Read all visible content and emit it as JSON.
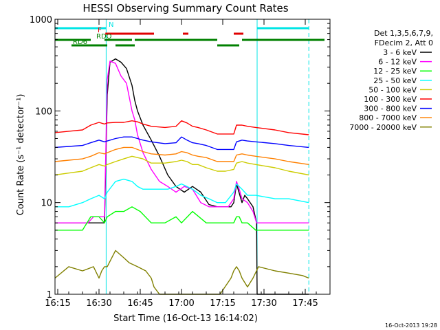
{
  "chart_data": {
    "type": "line",
    "title": "HESSI Observing Summary Count Rates",
    "xlabel": "Start Time (16-Oct-13 16:14:02)",
    "ylabel": "Count Rate (s⁻¹ detector⁻¹)",
    "y_scale": "log",
    "ylim": [
      1,
      1000
    ],
    "xlim_minutes": [
      0,
      100
    ],
    "x_ticks": [
      "16:15",
      "16:30",
      "16:45",
      "17:00",
      "17:15",
      "17:30",
      "17:45"
    ],
    "x_tick_minutes": [
      1,
      16,
      31,
      46,
      61,
      76,
      91
    ],
    "y_ticks": [
      "1",
      "10",
      "100",
      "1000"
    ],
    "y_tick_values": [
      1,
      10,
      100,
      1000
    ],
    "legend_header": [
      "Det 1,3,5,6,7,9,",
      "FDecim 2, Att 0"
    ],
    "footer_date": "16-Oct-2013 19:28",
    "vertical_lines": [
      {
        "minute": 18.6,
        "style": "solid",
        "color": "#00e5e5"
      },
      {
        "minute": 73.5,
        "style": "solid",
        "color": "#00e5e5"
      },
      {
        "minute": 92.3,
        "style": "dashed",
        "color": "#00e5e5"
      }
    ],
    "flag_bars": [
      {
        "label": "N",
        "color": "#00e5e5",
        "segments": [
          [
            0,
            18.5
          ],
          [
            73.5,
            92.3
          ]
        ]
      },
      {
        "label": "F",
        "color": "#e00000",
        "segments": [
          [
            18.3,
            36
          ],
          [
            46.5,
            48.5
          ],
          [
            65,
            68.5
          ]
        ]
      },
      {
        "label": "RDO",
        "color": "#008000",
        "segments": [
          [
            0,
            13
          ],
          [
            18,
            28
          ],
          [
            29,
            59
          ],
          [
            68,
            98
          ]
        ]
      },
      {
        "label": "RD6",
        "color": "#008000",
        "segments": [
          [
            6,
            19
          ],
          [
            22,
            29
          ],
          [
            59,
            67
          ]
        ]
      }
    ],
    "series": [
      {
        "name": "3 - 6 keV",
        "color": "#000000",
        "x": [
          0,
          10,
          13,
          16,
          18,
          19,
          20,
          22,
          24,
          26,
          28,
          29,
          30,
          32,
          35,
          38,
          41,
          44,
          47,
          50,
          53,
          56,
          59,
          61,
          64,
          65,
          66,
          68,
          69,
          70,
          72,
          73.3,
          73.5,
          92.3
        ],
        "values": [
          6,
          6,
          6,
          6,
          6,
          150,
          340,
          370,
          340,
          290,
          190,
          130,
          100,
          70,
          48,
          32,
          20,
          15,
          13,
          15,
          13,
          9.5,
          9,
          9,
          9,
          10,
          16,
          10,
          12,
          11,
          9,
          6,
          1,
          1
        ]
      },
      {
        "name": "6 - 12 keV",
        "color": "#ff00ff",
        "x": [
          0,
          10,
          12,
          14,
          16,
          18,
          19,
          20,
          22,
          24,
          26,
          28,
          29,
          30,
          32,
          35,
          38,
          41,
          44,
          47,
          50,
          53,
          56,
          59,
          61,
          63,
          65,
          66,
          67,
          68,
          70,
          72,
          73.3,
          73.5,
          92.3
        ],
        "values": [
          6,
          6,
          6,
          7,
          7,
          7,
          220,
          350,
          330,
          240,
          200,
          100,
          80,
          55,
          35,
          23,
          17,
          15,
          13,
          15,
          14,
          10,
          9,
          9,
          9,
          9,
          11,
          17,
          14,
          11,
          10,
          8,
          6,
          6,
          6
        ]
      },
      {
        "name": "12 - 25 keV",
        "color": "#00ff00",
        "x": [
          0,
          5,
          10,
          13,
          16,
          18,
          19,
          22,
          25,
          28,
          31,
          35,
          40,
          44,
          46,
          50,
          55,
          59,
          62,
          65,
          66,
          67,
          68,
          70,
          73,
          80,
          85,
          92.3
        ],
        "values": [
          5,
          5,
          5,
          7,
          7,
          6,
          7,
          8,
          8,
          9,
          8,
          6,
          6,
          7,
          6,
          8,
          6,
          6,
          6,
          6,
          7,
          7,
          6,
          6,
          5,
          5,
          5,
          5
        ]
      },
      {
        "name": "25 - 50 keV",
        "color": "#00ffff",
        "x": [
          0,
          5,
          10,
          13,
          16,
          18,
          19,
          22,
          25,
          28,
          30,
          32,
          35,
          38,
          41,
          44,
          46,
          48,
          50,
          53,
          56,
          59,
          62,
          65,
          66,
          68,
          70,
          73,
          80,
          85,
          92.3
        ],
        "values": [
          9,
          9,
          10,
          11,
          12,
          11,
          13,
          17,
          18,
          17,
          15,
          14,
          14,
          14,
          14,
          15,
          16,
          15,
          14,
          12,
          11,
          10,
          10,
          13,
          16,
          14,
          12,
          12,
          11,
          11,
          10
        ]
      },
      {
        "name": "50 - 100 keV",
        "color": "#cccc00",
        "x": [
          0,
          5,
          10,
          13,
          16,
          18,
          19,
          22,
          25,
          28,
          30,
          32,
          35,
          40,
          44,
          46,
          48,
          50,
          52,
          55,
          59,
          62,
          65,
          66,
          68,
          70,
          73,
          80,
          85,
          92.3
        ],
        "values": [
          20,
          21,
          22,
          24,
          26,
          25,
          26,
          28,
          30,
          32,
          31,
          30,
          27,
          27,
          28,
          29,
          28,
          26,
          26,
          24,
          22,
          22,
          23,
          27,
          28,
          27,
          26,
          24,
          22,
          20
        ]
      },
      {
        "name": "100 - 300 keV",
        "color": "#ff0000",
        "x": [
          0,
          5,
          10,
          13,
          16,
          18,
          19,
          22,
          25,
          28,
          30,
          32,
          35,
          40,
          44,
          46,
          48,
          50,
          52,
          55,
          59,
          62,
          65,
          66,
          68,
          70,
          73,
          80,
          85,
          92.3
        ],
        "values": [
          58,
          60,
          62,
          70,
          75,
          72,
          74,
          75,
          75,
          78,
          76,
          72,
          68,
          66,
          68,
          78,
          74,
          68,
          66,
          62,
          56,
          56,
          56,
          70,
          70,
          68,
          66,
          62,
          58,
          55
        ]
      },
      {
        "name": "300 - 800 keV",
        "color": "#0000ff",
        "x": [
          0,
          5,
          10,
          13,
          16,
          18,
          19,
          22,
          25,
          28,
          30,
          32,
          35,
          40,
          44,
          46,
          48,
          50,
          52,
          55,
          59,
          62,
          65,
          66,
          68,
          70,
          73,
          80,
          85,
          92.3
        ],
        "values": [
          40,
          41,
          42,
          45,
          48,
          46,
          47,
          50,
          52,
          52,
          50,
          48,
          46,
          44,
          45,
          52,
          48,
          45,
          44,
          42,
          38,
          38,
          38,
          46,
          48,
          47,
          46,
          44,
          42,
          40
        ]
      },
      {
        "name": "800 - 7000 keV",
        "color": "#ff8000",
        "x": [
          0,
          5,
          10,
          13,
          16,
          18,
          19,
          22,
          25,
          28,
          30,
          32,
          35,
          40,
          44,
          46,
          48,
          50,
          52,
          55,
          59,
          62,
          65,
          66,
          68,
          70,
          73,
          80,
          85,
          92.3
        ],
        "values": [
          28,
          29,
          30,
          32,
          35,
          34,
          35,
          38,
          40,
          40,
          38,
          36,
          34,
          33,
          34,
          36,
          35,
          33,
          32,
          31,
          28,
          28,
          28,
          33,
          34,
          33,
          32,
          30,
          28,
          26
        ]
      },
      {
        "name": "7000 - 20000 keV",
        "color": "#808000",
        "x": [
          0,
          5,
          10,
          14,
          16,
          17,
          18,
          19,
          22,
          25,
          27,
          30,
          33,
          35,
          36,
          38,
          50,
          55,
          60,
          64,
          65,
          66,
          67,
          68,
          70,
          72,
          74,
          80,
          85,
          90,
          92.3
        ],
        "values": [
          1.5,
          2,
          1.8,
          2,
          1.5,
          1.8,
          2,
          2,
          3,
          2.5,
          2.2,
          2,
          1.8,
          1.5,
          1.2,
          1,
          1,
          1,
          1,
          1.5,
          1.8,
          2,
          1.8,
          1.5,
          1.2,
          1.5,
          2,
          1.8,
          1.7,
          1.6,
          1.5
        ]
      }
    ]
  }
}
